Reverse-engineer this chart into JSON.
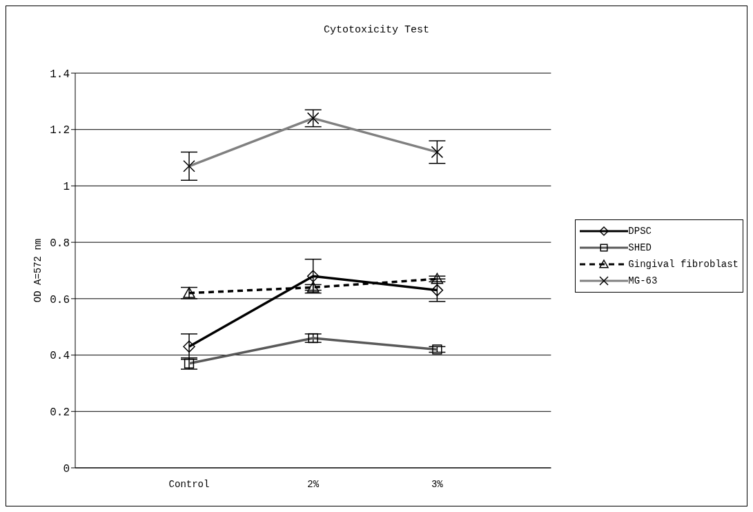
{
  "chart_data": {
    "type": "line",
    "title": "Cytotoxicity Test",
    "ylabel": "OD A=572 nm",
    "categories": [
      "Control",
      "2%",
      "3%"
    ],
    "series": [
      {
        "name": "DPSC",
        "color": "#000000",
        "marker": "diamond",
        "line_style": "solid",
        "values": [
          0.43,
          0.68,
          0.63
        ],
        "errors": [
          0.045,
          0.06,
          0.04
        ]
      },
      {
        "name": "SHED",
        "color": "#595959",
        "marker": "square",
        "line_style": "solid",
        "values": [
          0.37,
          0.46,
          0.42
        ],
        "errors": [
          0.02,
          0.015,
          0.01
        ]
      },
      {
        "name": "Gingival fibroblast",
        "color": "#000000",
        "marker": "triangle",
        "line_style": "dashed",
        "values": [
          0.62,
          0.64,
          0.67
        ],
        "errors": [
          0.02,
          0.01,
          0.01
        ]
      },
      {
        "name": "MG-63",
        "color": "#808080",
        "marker": "cross",
        "line_style": "solid",
        "values": [
          1.07,
          1.24,
          1.12
        ],
        "errors": [
          0.05,
          0.03,
          0.04
        ]
      }
    ],
    "ylim": [
      0,
      1.4
    ],
    "yticks": [
      0,
      0.2,
      0.4,
      0.6,
      0.8,
      1,
      1.2,
      1.4
    ],
    "grid": "y",
    "legend": "right"
  }
}
